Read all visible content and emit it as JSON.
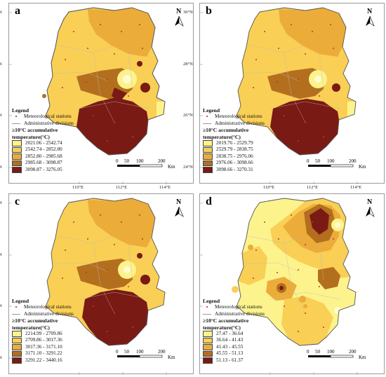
{
  "north_label": "N",
  "axes": {
    "lat_labels": [
      "30°N",
      "28°N",
      "26°N",
      "24°N"
    ],
    "lon_labels": [
      "110°E",
      "112°E",
      "114°E"
    ]
  },
  "scale_bar": {
    "ticks": [
      "0",
      "50",
      "100",
      "200"
    ],
    "unit": "Km"
  },
  "legend_common": {
    "title": "Legend",
    "stations": "Meteorological stations",
    "divisions": "Administrative divisions",
    "class_title_1": "≥10°C accumulative",
    "class_title_2": "temperature(°C)"
  },
  "colors": [
    "#fdf38c",
    "#f9cf55",
    "#ebac3a",
    "#b36f1e",
    "#7a1a14"
  ],
  "panels": [
    {
      "label": "a",
      "classes": [
        "2021.06 - 2542.74",
        "2542.74 - 2852.80",
        "2852.80 - 2985.68",
        "2985.68 - 3098.87",
        "3098.87 - 3276.05"
      ]
    },
    {
      "label": "b",
      "classes": [
        "2019.76 - 2529.79",
        "2529.79 - 2838.75",
        "2838.75 - 2976.06",
        "2976.06 - 3098.66",
        "3098.66 - 3270.31"
      ]
    },
    {
      "label": "c",
      "classes": [
        "2214.99 - 2709.86",
        "2709.86 - 3017.36",
        "3017.36 - 3171.10",
        "3171.10 - 3291.22",
        "3291.22 - 3440.16"
      ]
    },
    {
      "label": "d",
      "classes": [
        "27.47 - 36.64",
        "36.64 - 41.43",
        "41.43 - 45.55",
        "45.55 - 51.13",
        "51.13 - 61.37"
      ]
    }
  ]
}
